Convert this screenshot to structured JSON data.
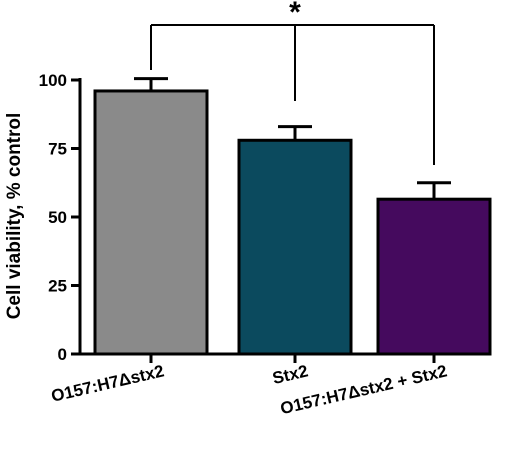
{
  "chart_data": {
    "type": "bar",
    "title": "",
    "xlabel": "",
    "ylabel": "Cell viability, % control",
    "ylim": [
      0,
      100
    ],
    "yticks": [
      0,
      25,
      50,
      75,
      100
    ],
    "categories": [
      "O157:H7Δstx2",
      "Stx2",
      "O157:H7Δstx2 + Stx2"
    ],
    "values": [
      96,
      78,
      56.5
    ],
    "errors": [
      4.5,
      5,
      6
    ],
    "colors": [
      "#8a8a8a",
      "#0b4a5e",
      "#450a5e"
    ],
    "significance": {
      "label": "*",
      "pairs": [
        [
          0,
          1
        ],
        [
          0,
          2
        ]
      ]
    }
  }
}
